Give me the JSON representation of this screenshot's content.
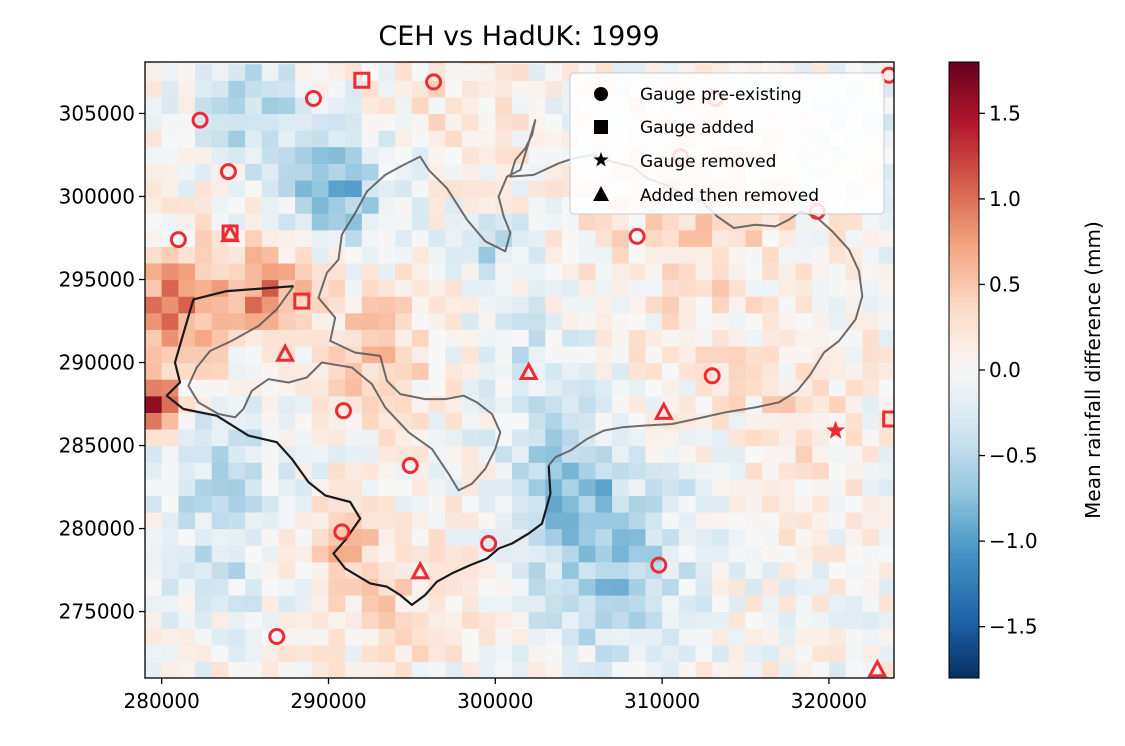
{
  "chart_data": {
    "type": "heatmap",
    "title": "CEH vs HadUK: 1999",
    "xlabel": "",
    "ylabel": "",
    "xlim": [
      279000,
      323900
    ],
    "ylim": [
      271000,
      308100
    ],
    "x_ticks": [
      280000,
      290000,
      300000,
      310000,
      320000
    ],
    "y_ticks": [
      275000,
      280000,
      285000,
      290000,
      295000,
      300000,
      305000
    ],
    "x_tick_labels": [
      "280000",
      "290000",
      "300000",
      "310000",
      "320000"
    ],
    "y_tick_labels": [
      "275000",
      "280000",
      "285000",
      "290000",
      "295000",
      "300000",
      "305000"
    ],
    "colorbar": {
      "label": "Mean rainfall difference (mm)",
      "colormap": "RdBu_r",
      "range": [
        -1.8,
        1.8
      ],
      "ticks": [
        -1.5,
        -1.0,
        -0.5,
        0.0,
        0.5,
        1.0,
        1.5
      ],
      "tick_labels": [
        "−1.5",
        "−1.0",
        "−0.5",
        "0.0",
        "0.5",
        "1.0",
        "1.5"
      ]
    },
    "grid_cell_size": 1000,
    "grid": false,
    "legend": {
      "placement": "top-right",
      "entries": [
        {
          "marker": "circle",
          "label": "Gauge pre-existing"
        },
        {
          "marker": "square",
          "label": "Gauge added"
        },
        {
          "marker": "star",
          "label": "Gauge removed"
        },
        {
          "marker": "triangle",
          "label": "Added then removed"
        }
      ]
    },
    "gauge_color": "#ee2a35",
    "gauges": [
      {
        "type": "square",
        "x": 292000,
        "y": 307000
      },
      {
        "type": "circle",
        "x": 296300,
        "y": 306900
      },
      {
        "type": "circle",
        "x": 289100,
        "y": 305900
      },
      {
        "type": "circle",
        "x": 282300,
        "y": 304600
      },
      {
        "type": "circle",
        "x": 323600,
        "y": 307300
      },
      {
        "type": "circle",
        "x": 313200,
        "y": 305900
      },
      {
        "type": "circle",
        "x": 311100,
        "y": 302400
      },
      {
        "type": "circle",
        "x": 284000,
        "y": 301500
      },
      {
        "type": "circle",
        "x": 319300,
        "y": 299100
      },
      {
        "type": "square",
        "x": 284100,
        "y": 297800
      },
      {
        "type": "triangle",
        "x": 284100,
        "y": 297700
      },
      {
        "type": "circle",
        "x": 281000,
        "y": 297400
      },
      {
        "type": "circle",
        "x": 308500,
        "y": 297600
      },
      {
        "type": "square",
        "x": 288400,
        "y": 293700
      },
      {
        "type": "triangle",
        "x": 287400,
        "y": 290500
      },
      {
        "type": "triangle",
        "x": 302000,
        "y": 289400
      },
      {
        "type": "circle",
        "x": 313000,
        "y": 289200
      },
      {
        "type": "circle",
        "x": 290900,
        "y": 287100
      },
      {
        "type": "triangle",
        "x": 310100,
        "y": 287000
      },
      {
        "type": "square",
        "x": 323700,
        "y": 286600
      },
      {
        "type": "star",
        "x": 320400,
        "y": 285900
      },
      {
        "type": "circle",
        "x": 294900,
        "y": 283800
      },
      {
        "type": "circle",
        "x": 290800,
        "y": 279800
      },
      {
        "type": "circle",
        "x": 299600,
        "y": 279100
      },
      {
        "type": "circle",
        "x": 309800,
        "y": 277800
      },
      {
        "type": "triangle",
        "x": 295500,
        "y": 277400
      },
      {
        "type": "circle",
        "x": 286900,
        "y": 273500
      },
      {
        "type": "triangle",
        "x": 322900,
        "y": 271500
      }
    ],
    "catchment_inner": [
      [
        287900,
        294600
      ],
      [
        283900,
        294300
      ],
      [
        281900,
        293800
      ],
      [
        281200,
        291400
      ],
      [
        280800,
        290000
      ],
      [
        281100,
        288800
      ],
      [
        280300,
        288000
      ],
      [
        281300,
        287200
      ],
      [
        283300,
        286800
      ],
      [
        285200,
        285600
      ],
      [
        286900,
        285200
      ],
      [
        287800,
        284200
      ],
      [
        288800,
        282800
      ],
      [
        289800,
        282000
      ],
      [
        291300,
        281600
      ],
      [
        291900,
        280600
      ],
      [
        291000,
        279300
      ],
      [
        290300,
        278500
      ],
      [
        291000,
        277600
      ],
      [
        292500,
        276700
      ],
      [
        293500,
        276500
      ],
      [
        294300,
        276000
      ],
      [
        295000,
        275400
      ],
      [
        295800,
        276000
      ],
      [
        296500,
        276800
      ],
      [
        297400,
        277300
      ],
      [
        298500,
        277800
      ],
      [
        299500,
        278200
      ],
      [
        300200,
        278800
      ],
      [
        301000,
        279100
      ],
      [
        302000,
        279700
      ],
      [
        302800,
        280300
      ],
      [
        303300,
        282100
      ],
      [
        303200,
        283800
      ]
    ],
    "catchment_outer": [
      [
        303200,
        283800
      ],
      [
        303600,
        284300
      ],
      [
        304500,
        284700
      ],
      [
        305500,
        285400
      ],
      [
        306500,
        285900
      ],
      [
        307600,
        286100
      ],
      [
        308900,
        286200
      ],
      [
        310600,
        286300
      ],
      [
        312000,
        286600
      ],
      [
        313800,
        287000
      ],
      [
        315600,
        287300
      ],
      [
        317000,
        287600
      ],
      [
        318100,
        288300
      ],
      [
        318900,
        289300
      ],
      [
        319700,
        290600
      ],
      [
        320600,
        291300
      ],
      [
        321600,
        292600
      ],
      [
        322000,
        294000
      ],
      [
        321800,
        295500
      ],
      [
        321200,
        296800
      ],
      [
        320200,
        297900
      ],
      [
        319200,
        298800
      ],
      [
        318300,
        299100
      ],
      [
        317600,
        298600
      ],
      [
        316800,
        298200
      ],
      [
        315600,
        298300
      ],
      [
        314300,
        298100
      ],
      [
        313300,
        298800
      ],
      [
        312400,
        299700
      ],
      [
        311400,
        300100
      ],
      [
        310200,
        300700
      ],
      [
        309100,
        301100
      ],
      [
        308200,
        301800
      ],
      [
        307000,
        302100
      ],
      [
        305800,
        302500
      ],
      [
        304700,
        302300
      ],
      [
        303800,
        302000
      ],
      [
        302300,
        301300
      ],
      [
        300900,
        301200
      ],
      [
        301200,
        302200
      ],
      [
        301800,
        302900
      ],
      [
        302200,
        303700
      ],
      [
        302400,
        304600
      ],
      [
        301900,
        302900
      ],
      [
        301500,
        301600
      ],
      [
        300700,
        301200
      ],
      [
        300200,
        300000
      ],
      [
        300500,
        298800
      ],
      [
        300900,
        297800
      ],
      [
        300600,
        296700
      ],
      [
        299400,
        297300
      ],
      [
        298300,
        298600
      ],
      [
        297100,
        300500
      ],
      [
        296000,
        301600
      ],
      [
        295500,
        302400
      ],
      [
        294500,
        301900
      ],
      [
        293400,
        301300
      ],
      [
        292300,
        300300
      ],
      [
        291600,
        299000
      ],
      [
        290800,
        297700
      ],
      [
        290600,
        296200
      ],
      [
        289900,
        295400
      ],
      [
        289400,
        293900
      ],
      [
        290400,
        292700
      ],
      [
        290100,
        291300
      ],
      [
        291600,
        290600
      ],
      [
        293100,
        290400
      ],
      [
        293500,
        288900
      ],
      [
        294300,
        288100
      ],
      [
        295800,
        287800
      ],
      [
        297000,
        287800
      ],
      [
        298100,
        288000
      ],
      [
        298900,
        287600
      ],
      [
        299800,
        286900
      ],
      [
        300300,
        285800
      ],
      [
        300000,
        284800
      ],
      [
        299400,
        283600
      ],
      [
        298600,
        282700
      ],
      [
        297800,
        282300
      ],
      [
        297200,
        283300
      ],
      [
        296200,
        284800
      ],
      [
        294800,
        285800
      ],
      [
        293400,
        287300
      ],
      [
        292600,
        288700
      ],
      [
        291400,
        289700
      ],
      [
        289600,
        290000
      ],
      [
        288700,
        289100
      ],
      [
        287600,
        288800
      ],
      [
        286400,
        289000
      ],
      [
        285400,
        288300
      ],
      [
        284900,
        287200
      ],
      [
        284400,
        286700
      ],
      [
        283400,
        286900
      ],
      [
        282200,
        287600
      ],
      [
        281600,
        288600
      ],
      [
        282100,
        289700
      ],
      [
        282900,
        290700
      ],
      [
        284200,
        291300
      ],
      [
        285800,
        292200
      ],
      [
        286900,
        293200
      ],
      [
        287900,
        294600
      ]
    ]
  }
}
